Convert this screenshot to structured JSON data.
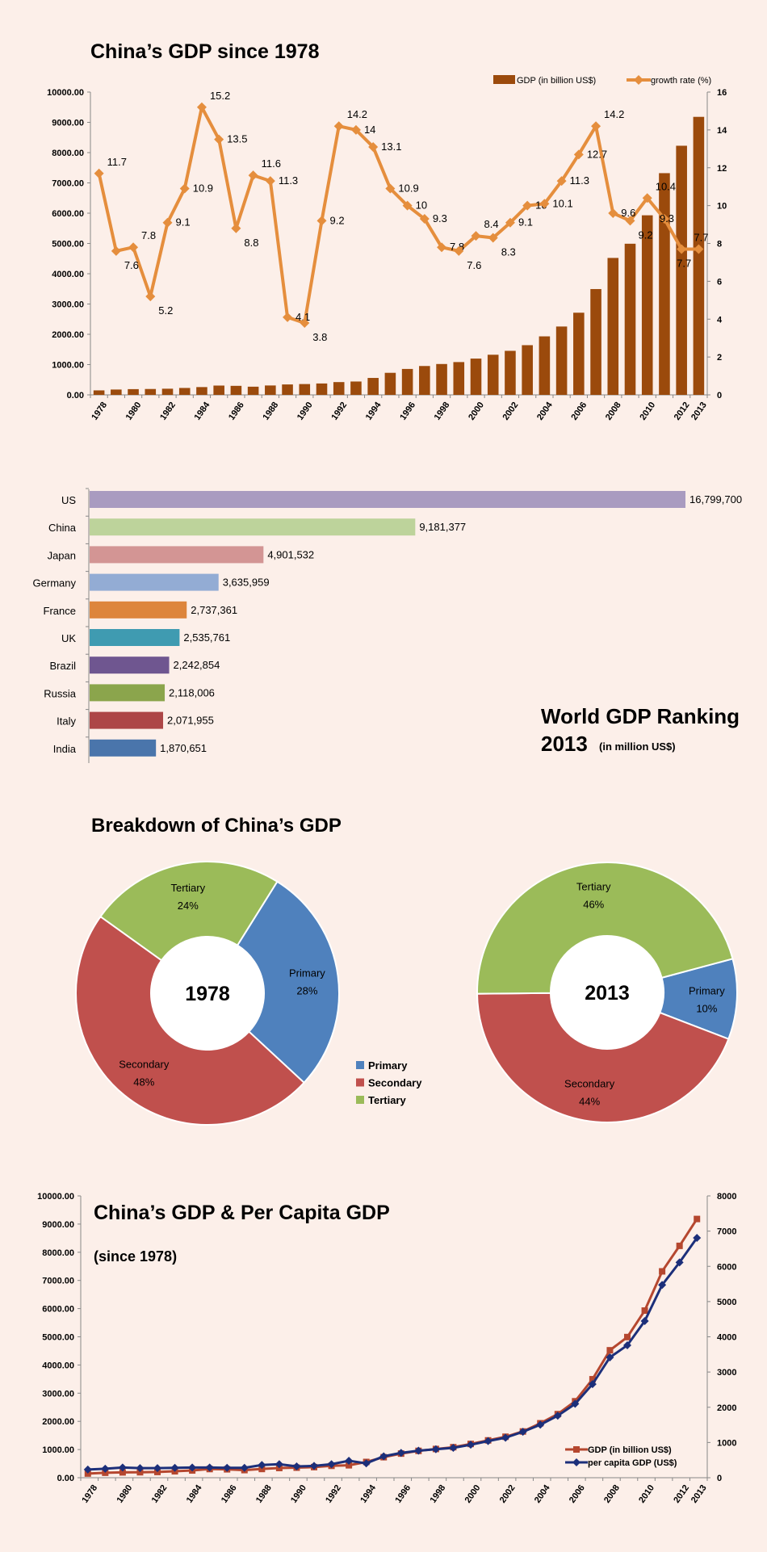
{
  "colors": {
    "background": "#fcefe9",
    "gdp_bar": "#9b4a0c",
    "growth_line": "#e58e3d",
    "primary": "#4f81bd",
    "secondary": "#c0504d",
    "tertiary": "#9bbb59",
    "gdp_line": "#b5472f",
    "per_capita_line": "#1c2f7a"
  },
  "chart_data": [
    {
      "type": "bar+line",
      "title": "China’s GDP since 1978",
      "categories": [
        1978,
        1979,
        1980,
        1981,
        1982,
        1983,
        1984,
        1985,
        1986,
        1987,
        1988,
        1989,
        1990,
        1991,
        1992,
        1993,
        1994,
        1995,
        1996,
        1997,
        1998,
        1999,
        2000,
        2001,
        2002,
        2003,
        2004,
        2005,
        2006,
        2007,
        2008,
        2009,
        2010,
        2011,
        2012,
        2013
      ],
      "x_tick_labels": [
        "1978",
        "1980",
        "1982",
        "1984",
        "1986",
        "1988",
        "1990",
        "1992",
        "1994",
        "1996",
        "1998",
        "2000",
        "2002",
        "2004",
        "2006",
        "2008",
        "2010",
        "2012",
        "2013"
      ],
      "series": [
        {
          "name": "GDP (in billion US$)",
          "axis": "left",
          "type": "bar",
          "values": [
            148,
            176,
            189,
            194,
            203,
            228,
            257,
            307,
            298,
            270,
            310,
            344,
            357,
            376,
            422,
            441,
            559,
            728,
            856,
            953,
            1019,
            1083,
            1198,
            1325,
            1454,
            1641,
            1932,
            2257,
            2713,
            3494,
            4522,
            4991,
            5930,
            7322,
            8227,
            9181
          ]
        },
        {
          "name": "growth rate (%)",
          "axis": "right",
          "type": "line",
          "values": [
            11.7,
            7.6,
            7.8,
            5.2,
            9.1,
            10.9,
            15.2,
            13.5,
            8.8,
            11.6,
            11.3,
            4.1,
            3.8,
            9.2,
            14.2,
            14,
            13.1,
            10.9,
            10,
            9.3,
            7.8,
            7.6,
            8.4,
            8.3,
            9.1,
            10,
            10.1,
            11.3,
            12.7,
            14.2,
            9.6,
            9.2,
            10.4,
            9.3,
            7.7,
            7.7
          ]
        }
      ],
      "y_left": {
        "lim": [
          0,
          10000
        ],
        "ticks": [
          "0.00",
          "1000.00",
          "2000.00",
          "3000.00",
          "4000.00",
          "5000.00",
          "6000.00",
          "7000.00",
          "8000.00",
          "9000.00",
          "10000.00"
        ]
      },
      "y_right": {
        "lim": [
          0,
          16
        ],
        "ticks": [
          "0",
          "2",
          "4",
          "6",
          "8",
          "10",
          "12",
          "14",
          "16"
        ]
      },
      "legend": "top-right",
      "grid": false
    },
    {
      "type": "bar",
      "orientation": "horizontal",
      "title": "World GDP Ranking",
      "subtitle_year": "2013",
      "subtitle_unit": "(in million US$)",
      "categories": [
        "US",
        "China",
        "Japan",
        "Germany",
        "France",
        "UK",
        "Brazil",
        "Russia",
        "Italy",
        "India"
      ],
      "values": [
        16799700,
        9181377,
        4901532,
        3635959,
        2737361,
        2535761,
        2242854,
        2118006,
        2071955,
        1870651
      ],
      "value_labels": [
        "16,799,700",
        "9,181,377",
        "4,901,532",
        "3,635,959",
        "2,737,361",
        "2,535,761",
        "2,242,854",
        "2,118,006",
        "2,071,955",
        "1,870,651"
      ],
      "bar_colors": [
        "#a99bc0",
        "#bdd39b",
        "#d39594",
        "#93acd4",
        "#dd853c",
        "#3f9bb1",
        "#6f5690",
        "#8ba54c",
        "#ad4647",
        "#4a75ab"
      ]
    },
    {
      "type": "pie",
      "title": "Breakdown of China’s GDP",
      "donuts": [
        {
          "center_label": "1978",
          "slices": [
            {
              "name": "Primary",
              "value": 28,
              "label": "28%"
            },
            {
              "name": "Secondary",
              "value": 48,
              "label": "48%"
            },
            {
              "name": "Tertiary",
              "value": 24,
              "label": "24%"
            }
          ]
        },
        {
          "center_label": "2013",
          "slices": [
            {
              "name": "Primary",
              "value": 10,
              "label": "10%"
            },
            {
              "name": "Secondary",
              "value": 44,
              "label": "44%"
            },
            {
              "name": "Tertiary",
              "value": 46,
              "label": "46%"
            }
          ]
        }
      ],
      "legend": [
        "Primary",
        "Secondary",
        "Tertiary"
      ]
    },
    {
      "type": "line",
      "title": "China’s GDP & Per Capita GDP",
      "subtitle": "(since 1978)",
      "categories": [
        1978,
        1979,
        1980,
        1981,
        1982,
        1983,
        1984,
        1985,
        1986,
        1987,
        1988,
        1989,
        1990,
        1991,
        1992,
        1993,
        1994,
        1995,
        1996,
        1997,
        1998,
        1999,
        2000,
        2001,
        2002,
        2003,
        2004,
        2005,
        2006,
        2007,
        2008,
        2009,
        2010,
        2011,
        2012,
        2013
      ],
      "x_tick_labels": [
        "1978",
        "1980",
        "1982",
        "1984",
        "1986",
        "1988",
        "1990",
        "1992",
        "1994",
        "1996",
        "1998",
        "2000",
        "2002",
        "2004",
        "2006",
        "2008",
        "2010",
        "2012",
        "2013"
      ],
      "series": [
        {
          "name": "GDP (in billion US$)",
          "axis": "left",
          "values": [
            148,
            176,
            189,
            194,
            203,
            228,
            257,
            307,
            298,
            270,
            310,
            344,
            357,
            376,
            422,
            441,
            559,
            728,
            856,
            953,
            1019,
            1083,
            1198,
            1325,
            1454,
            1641,
            1932,
            2257,
            2713,
            3494,
            4522,
            4991,
            5930,
            7322,
            8227,
            9181
          ]
        },
        {
          "name": "per capita GDP (US$)",
          "axis": "right",
          "values": [
            232,
            256,
            288,
            272,
            272,
            280,
            288,
            288,
            280,
            280,
            360,
            384,
            320,
            336,
            384,
            480,
            408,
            608,
            704,
            768,
            808,
            848,
            936,
            1040,
            1136,
            1304,
            1504,
            1760,
            2096,
            2656,
            3416,
            3760,
            4448,
            5472,
            6112,
            6808
          ]
        }
      ],
      "y_left": {
        "lim": [
          0,
          10000
        ],
        "ticks": [
          "0.00",
          "1000.00",
          "2000.00",
          "3000.00",
          "4000.00",
          "5000.00",
          "6000.00",
          "7000.00",
          "8000.00",
          "9000.00",
          "10000.00"
        ]
      },
      "y_right": {
        "lim": [
          0,
          8000
        ],
        "ticks": [
          "0",
          "1000",
          "2000",
          "3000",
          "4000",
          "5000",
          "6000",
          "7000",
          "8000"
        ]
      },
      "legend": "bottom-right",
      "grid": false
    }
  ]
}
